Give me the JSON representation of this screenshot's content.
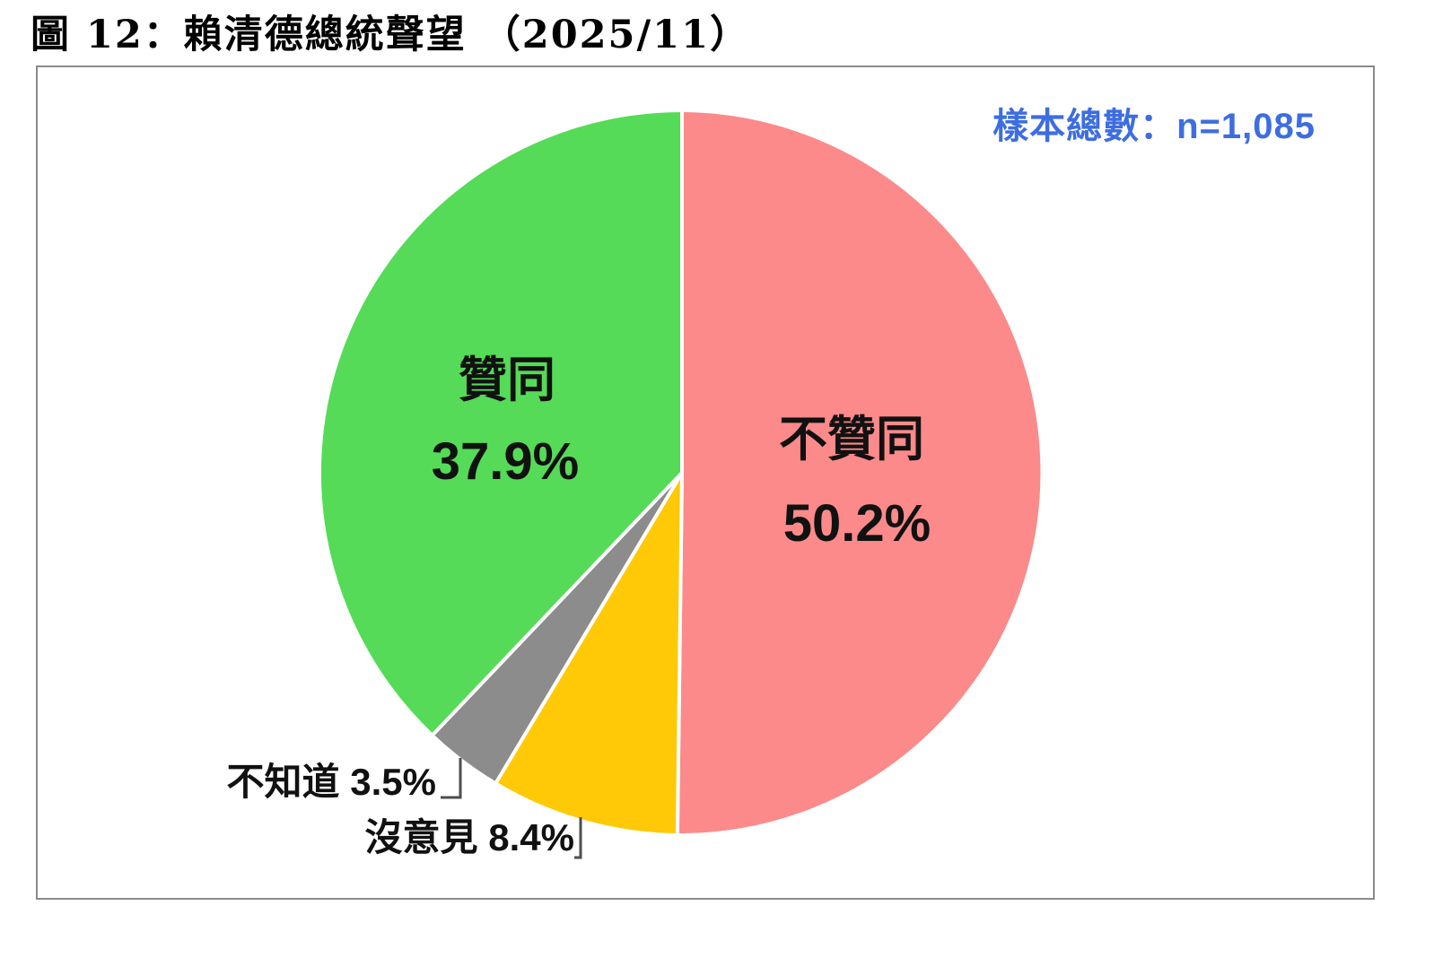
{
  "figure": {
    "title": "圖 12：賴清德總統聲望 （2025/11）",
    "sample_note": "樣本總數：n=1,085"
  },
  "chart_data": {
    "type": "pie",
    "title": "圖 12：賴清德總統聲望 （2025/11）",
    "sample_size_label": "樣本總數：n=1,085",
    "sample_n": 1085,
    "unit": "percent",
    "direction": "clockwise",
    "start_angle": "12-oclock",
    "legend_position": "none",
    "labels_on_chart": true,
    "slices": [
      {
        "label": "不贊同",
        "value": 50.2,
        "display_value": "50.2%",
        "color": "#FC8A8A",
        "label_placement": "inside"
      },
      {
        "label": "沒意見",
        "value": 8.4,
        "display_value": "8.4%",
        "color": "#FFC908",
        "label_placement": "outside-callout"
      },
      {
        "label": "不知道",
        "value": 3.5,
        "display_value": "3.5%",
        "color": "#8C8C8C",
        "label_placement": "outside-callout"
      },
      {
        "label": "贊同",
        "value": 37.9,
        "display_value": "37.9%",
        "color": "#55DB57",
        "label_placement": "inside"
      }
    ],
    "colors": {
      "disapprove": "#FC8A8A",
      "no_opinion": "#FFC908",
      "dont_know": "#8C8C8C",
      "approve": "#55DB57",
      "sample_text": "#3D6EE0",
      "callout_line": "#4d4d4d"
    }
  }
}
